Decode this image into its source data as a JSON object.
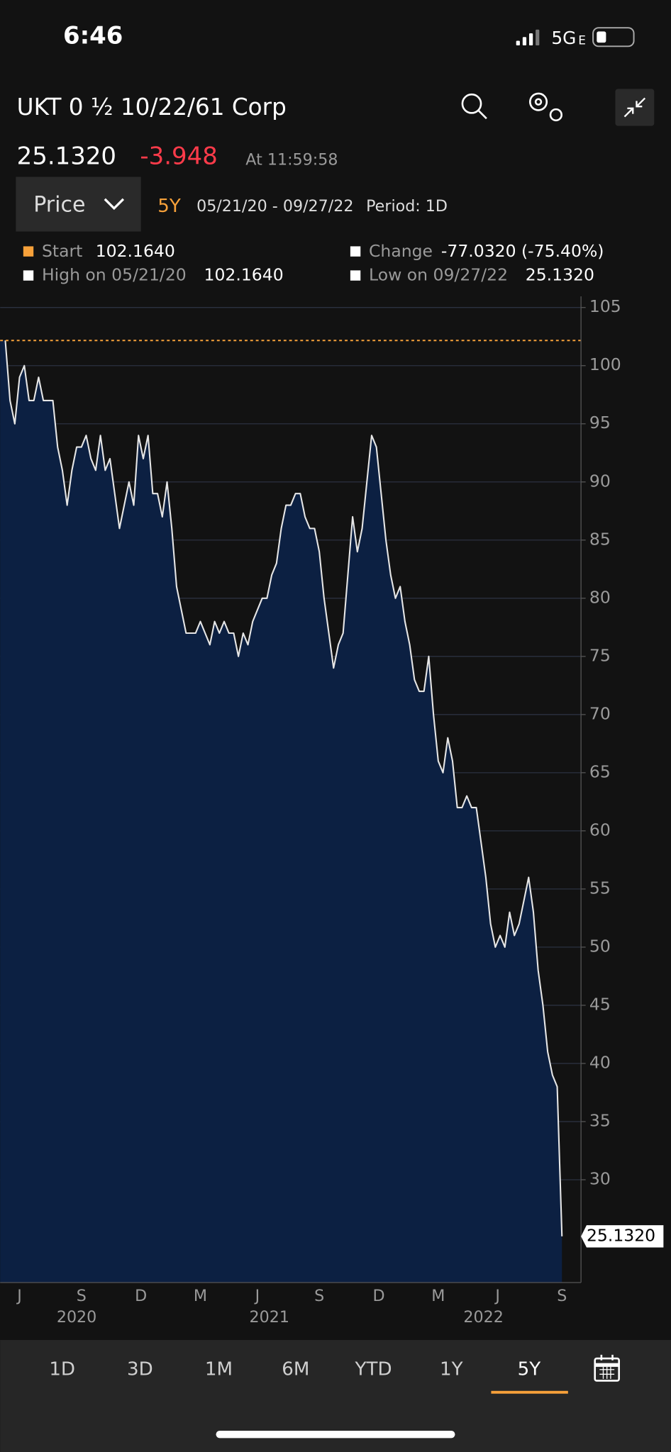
{
  "status_bar": {
    "time": "6:46",
    "network": "5G",
    "network_sub": "E"
  },
  "header": {
    "title": "UKT 0 ½ 10/22/61 Corp",
    "price": "25.1320",
    "change": "-3.948",
    "time": "At 11:59:58"
  },
  "controls": {
    "dropdown": "Price",
    "range": "5Y",
    "dates": "05/21/20 - 09/27/22",
    "period": "Period: 1D"
  },
  "stats": {
    "start": {
      "label": "Start",
      "value": "102.1640"
    },
    "change": {
      "label": "Change",
      "value": "-77.0320 (-75.40%)"
    },
    "high": {
      "label": "High on 05/21/20",
      "value": "102.1640"
    },
    "low": {
      "label": "Low on 09/27/22",
      "value": "25.1320"
    }
  },
  "chart_data": {
    "type": "area",
    "x": [
      2020.39,
      2020.41,
      2020.43,
      2020.45,
      2020.47,
      2020.49,
      2020.51,
      2020.53,
      2020.55,
      2020.57,
      2020.59,
      2020.61,
      2020.63,
      2020.65,
      2020.67,
      2020.69,
      2020.71,
      2020.73,
      2020.75,
      2020.77,
      2020.79,
      2020.81,
      2020.83,
      2020.85,
      2020.87,
      2020.89,
      2020.91,
      2020.93,
      2020.95,
      2020.97,
      2020.99,
      2021.01,
      2021.03,
      2021.05,
      2021.07,
      2021.09,
      2021.11,
      2021.13,
      2021.15,
      2021.17,
      2021.19,
      2021.21,
      2021.23,
      2021.25,
      2021.27,
      2021.29,
      2021.31,
      2021.33,
      2021.35,
      2021.37,
      2021.39,
      2021.41,
      2021.43,
      2021.45,
      2021.47,
      2021.49,
      2021.51,
      2021.53,
      2021.55,
      2021.57,
      2021.59,
      2021.61,
      2021.63,
      2021.65,
      2021.67,
      2021.69,
      2021.71,
      2021.73,
      2021.75,
      2021.77,
      2021.79,
      2021.81,
      2021.83,
      2021.85,
      2021.87,
      2021.89,
      2021.91,
      2021.93,
      2021.95,
      2021.97,
      2021.99,
      2022.01,
      2022.03,
      2022.05,
      2022.07,
      2022.09,
      2022.11,
      2022.13,
      2022.15,
      2022.17,
      2022.19,
      2022.21,
      2022.23,
      2022.25,
      2022.27,
      2022.29,
      2022.31,
      2022.33,
      2022.35,
      2022.37,
      2022.39,
      2022.41,
      2022.43,
      2022.45,
      2022.47,
      2022.49,
      2022.51,
      2022.53,
      2022.55,
      2022.57,
      2022.59,
      2022.61,
      2022.63,
      2022.65,
      2022.67,
      2022.69,
      2022.71,
      2022.73
    ],
    "values": [
      102.164,
      97,
      95,
      99,
      100,
      97,
      97,
      99,
      97,
      97,
      97,
      93,
      91,
      88,
      91,
      93,
      93,
      94,
      92,
      91,
      94,
      91,
      92,
      89,
      86,
      88,
      90,
      88,
      94,
      92,
      94,
      89,
      89,
      87,
      90,
      86,
      81,
      79,
      77,
      77,
      77,
      78,
      77,
      76,
      78,
      77,
      78,
      77,
      77,
      75,
      77,
      76,
      78,
      79,
      80,
      80,
      82,
      83,
      86,
      88,
      88,
      89,
      89,
      87,
      86,
      86,
      84,
      80,
      77,
      74,
      76,
      77,
      82,
      87,
      84,
      86,
      90,
      94,
      93,
      89,
      85,
      82,
      80,
      81,
      78,
      76,
      73,
      72,
      72,
      75,
      70,
      66,
      65,
      68,
      66,
      62,
      62,
      63,
      62,
      62,
      59,
      56,
      52,
      50,
      51,
      50,
      53,
      51,
      52,
      54,
      56,
      53,
      48,
      45,
      41,
      39,
      38,
      25.132
    ],
    "line_color": "#e6e6e6",
    "fill_color": "#0c2042",
    "xlim": [
      2020.38,
      2022.74
    ],
    "ylim": [
      21.16,
      105.96
    ],
    "xticks": [
      {
        "value": 2020.45,
        "label": "J"
      },
      {
        "value": 2020.71,
        "label": "S"
      },
      {
        "value": 2020.96,
        "label": "D"
      },
      {
        "value": 2021.21,
        "label": "M"
      },
      {
        "value": 2021.45,
        "label": "J"
      },
      {
        "value": 2021.71,
        "label": "S"
      },
      {
        "value": 2021.96,
        "label": "D"
      },
      {
        "value": 2022.21,
        "label": "M"
      },
      {
        "value": 2022.46,
        "label": "J"
      },
      {
        "value": 2022.73,
        "label": "S"
      }
    ],
    "xticks_year": [
      {
        "value": 2020.69,
        "label": "2020"
      },
      {
        "value": 2021.5,
        "label": "2021"
      },
      {
        "value": 2022.4,
        "label": "2022"
      }
    ],
    "yticks": [
      30,
      35,
      40,
      45,
      50,
      55,
      60,
      65,
      70,
      75,
      80,
      85,
      90,
      95,
      100,
      105
    ],
    "grid": true,
    "start_line": {
      "value": 102.164,
      "color": "#f7a13a"
    },
    "annotations": [
      {
        "value": 25.132,
        "label": "25.1320"
      }
    ]
  },
  "tabs": [
    "1D",
    "3D",
    "1M",
    "6M",
    "YTD",
    "1Y",
    "5Y"
  ]
}
